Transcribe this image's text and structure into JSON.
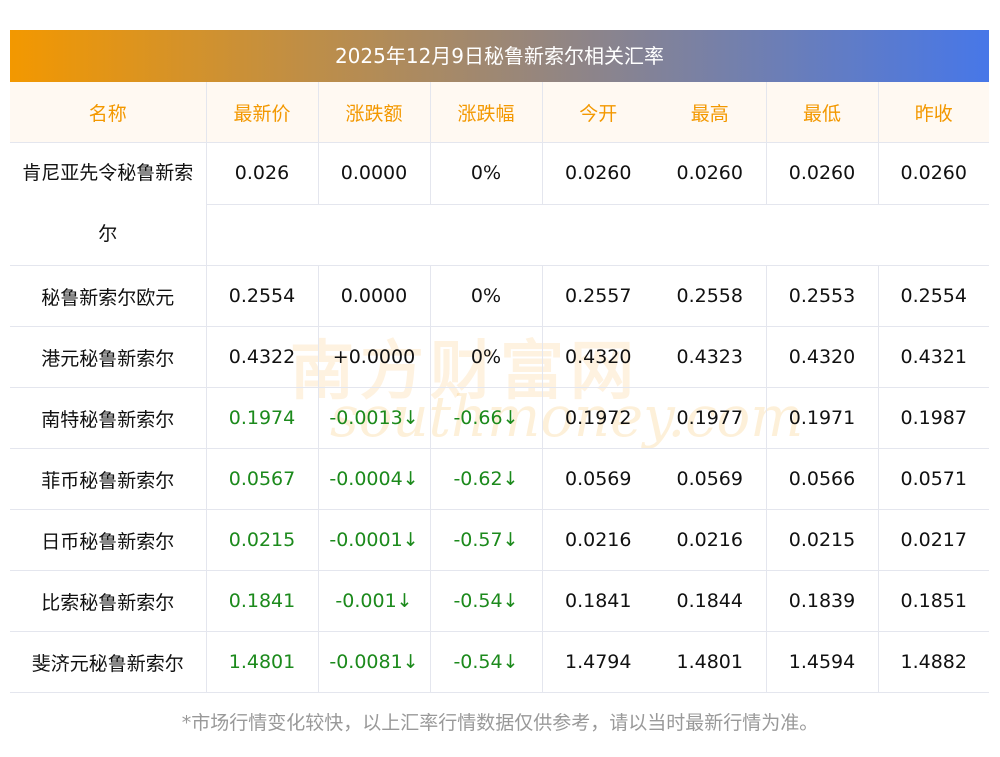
{
  "title": "2025年12月9日秘鲁新索尔相关汇率",
  "columns": [
    "名称",
    "最新价",
    "涨跌额",
    "涨跌幅",
    "今开",
    "最高",
    "最低",
    "昨收"
  ],
  "rows": [
    {
      "name": "肯尼亚先令秘鲁新索尔",
      "cells": [
        "0.026",
        "0.0000",
        "0%",
        "0.0260",
        "0.0260",
        "0.0260",
        "0.0260"
      ],
      "trend": "flat"
    },
    {
      "name": "秘鲁新索尔欧元",
      "cells": [
        "0.2554",
        "0.0000",
        "0%",
        "0.2557",
        "0.2558",
        "0.2553",
        "0.2554"
      ],
      "trend": "flat"
    },
    {
      "name": "港元秘鲁新索尔",
      "cells": [
        "0.4322",
        "+0.0000",
        "0%",
        "0.4320",
        "0.4323",
        "0.4320",
        "0.4321"
      ],
      "trend": "flat"
    },
    {
      "name": "南特秘鲁新索尔",
      "cells": [
        "0.1974",
        "-0.0013↓",
        "-0.66↓",
        "0.1972",
        "0.1977",
        "0.1971",
        "0.1987"
      ],
      "trend": "down"
    },
    {
      "name": "菲币秘鲁新索尔",
      "cells": [
        "0.0567",
        "-0.0004↓",
        "-0.62↓",
        "0.0569",
        "0.0569",
        "0.0566",
        "0.0571"
      ],
      "trend": "down"
    },
    {
      "name": "日币秘鲁新索尔",
      "cells": [
        "0.0215",
        "-0.0001↓",
        "-0.57↓",
        "0.0216",
        "0.0216",
        "0.0215",
        "0.0217"
      ],
      "trend": "down"
    },
    {
      "name": "比索秘鲁新索尔",
      "cells": [
        "0.1841",
        "-0.001↓",
        "-0.54↓",
        "0.1841",
        "0.1844",
        "0.1839",
        "0.1851"
      ],
      "trend": "down"
    },
    {
      "name": "斐济元秘鲁新索尔",
      "cells": [
        "1.4801",
        "-0.0081↓",
        "-0.54↓",
        "1.4794",
        "1.4801",
        "1.4594",
        "1.4882"
      ],
      "trend": "down"
    }
  ],
  "note": "*市场行情变化较快，以上汇率行情数据仅供参考，请以当时最新行情为准。",
  "watermark": {
    "cn": "南方财富网",
    "en": "southmoney.com"
  },
  "colors": {
    "down": "#1c8a1c",
    "header": "#f39800"
  }
}
